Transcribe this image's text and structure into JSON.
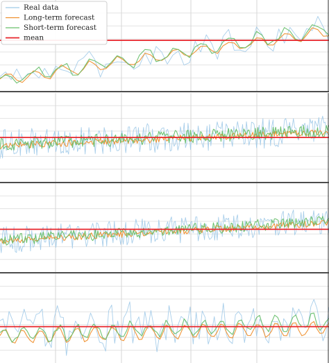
{
  "chart_data": [
    {
      "type": "line",
      "panel": 1,
      "title": "",
      "xlabel": "",
      "ylabel": "",
      "grid": true,
      "legend": {
        "placement": "top-left",
        "entries": [
          "Real data",
          "Long-term forecast",
          "Short-term forecast",
          "mean"
        ]
      },
      "points": 60,
      "ylim": [
        0,
        100
      ],
      "mean": 56,
      "series": [
        {
          "name": "Real data",
          "color": "#9ec9e8",
          "trend": [
            10,
            70
          ],
          "seasonal_amp": 5,
          "season_period": 5,
          "noise_amp": 14
        },
        {
          "name": "Long-term forecast",
          "color": "#ef8f2d",
          "trend": [
            10,
            66
          ],
          "seasonal_amp": 6,
          "season_period": 5,
          "noise_amp": 2
        },
        {
          "name": "Short-term forecast",
          "color": "#68bf6b",
          "trend": [
            10,
            70
          ],
          "seasonal_amp": 7,
          "season_period": 5,
          "noise_amp": 4
        },
        {
          "name": "mean",
          "color": "#e8242a",
          "constant": 56
        }
      ]
    },
    {
      "type": "line",
      "panel": 2,
      "title": "",
      "xlabel": "",
      "ylabel": "",
      "grid": true,
      "points": 260,
      "ylim": [
        0,
        100
      ],
      "mean": 50,
      "series": [
        {
          "name": "Real data",
          "color": "#9ec9e8",
          "trend": [
            42,
            58
          ],
          "seasonal_amp": 26,
          "season_period": 2,
          "noise_amp": 18
        },
        {
          "name": "Long-term forecast",
          "color": "#ef8f2d",
          "trend": [
            40,
            56
          ],
          "seasonal_amp": 24,
          "season_period": 2,
          "noise_amp": 4
        },
        {
          "name": "Short-term forecast",
          "color": "#68bf6b",
          "trend": [
            42,
            58
          ],
          "seasonal_amp": 26,
          "season_period": 2,
          "noise_amp": 8
        },
        {
          "name": "mean",
          "color": "#e8242a",
          "constant": 50
        }
      ]
    },
    {
      "type": "line",
      "panel": 3,
      "title": "",
      "xlabel": "",
      "ylabel": "",
      "grid": true,
      "points": 260,
      "ylim": [
        0,
        100
      ],
      "mean": 48,
      "series": [
        {
          "name": "Real data",
          "color": "#9ec9e8",
          "trend": [
            35,
            58
          ],
          "seasonal_amp": 24,
          "season_period": 2,
          "noise_amp": 16
        },
        {
          "name": "Long-term forecast",
          "color": "#ef8f2d",
          "trend": [
            34,
            56
          ],
          "seasonal_amp": 22,
          "season_period": 2,
          "noise_amp": 4
        },
        {
          "name": "Short-term forecast",
          "color": "#68bf6b",
          "trend": [
            35,
            58
          ],
          "seasonal_amp": 24,
          "season_period": 2,
          "noise_amp": 7
        },
        {
          "name": "mean",
          "color": "#e8242a",
          "constant": 48
        }
      ]
    },
    {
      "type": "line",
      "panel": 4,
      "title": "",
      "xlabel": "",
      "ylabel": "",
      "grid": true,
      "points": 110,
      "ylim": [
        0,
        100
      ],
      "mean": 40,
      "series": [
        {
          "name": "Real data",
          "color": "#9ec9e8",
          "trend": [
            32,
            50
          ],
          "seasonal_amp": 6,
          "season_period": 6,
          "noise_amp": 26
        },
        {
          "name": "Long-term forecast",
          "color": "#ef8f2d",
          "trend": [
            28,
            38
          ],
          "seasonal_amp": 8,
          "season_period": 6,
          "noise_amp": 2
        },
        {
          "name": "Short-term forecast",
          "color": "#68bf6b",
          "trend": [
            30,
            46
          ],
          "seasonal_amp": 8,
          "season_period": 6,
          "noise_amp": 4
        },
        {
          "name": "mean",
          "color": "#e8242a",
          "constant": 40
        }
      ]
    }
  ]
}
